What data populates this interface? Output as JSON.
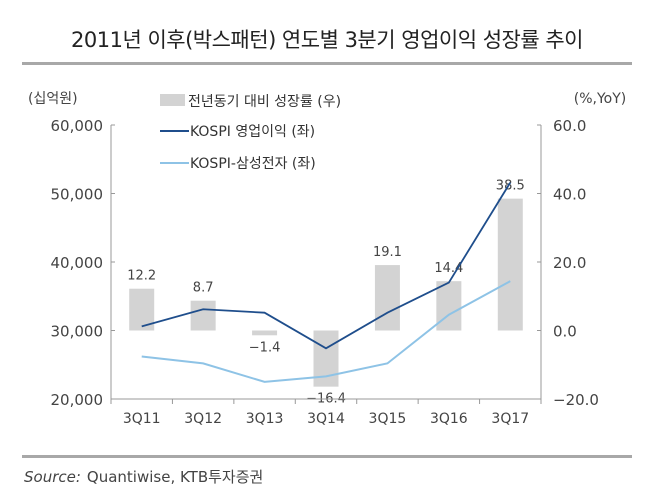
{
  "title": "2011년 이후(박스패턴) 연도별 3분기 영업이익 성장률 추이",
  "source_label": "Source:",
  "source_text": "Quantiwise, KTB투자증권",
  "chart_data": {
    "type": "bar+line",
    "categories": [
      "3Q11",
      "3Q12",
      "3Q13",
      "3Q14",
      "3Q15",
      "3Q16",
      "3Q17"
    ],
    "left_axis": {
      "unit_label": "(십억원)",
      "range": [
        20000,
        60000
      ],
      "ticks": [
        "20,000",
        "30,000",
        "40,000",
        "50,000",
        "60,000"
      ],
      "tick_values": [
        20000,
        30000,
        40000,
        50000,
        60000
      ]
    },
    "right_axis": {
      "unit_label": "(%,YoY)",
      "range": [
        -20,
        60
      ],
      "ticks": [
        "-20.0",
        "0.0",
        "20.0",
        "40.0",
        "60.0"
      ],
      "tick_values": [
        -20,
        0,
        20,
        40,
        60
      ]
    },
    "series": [
      {
        "name": "전년동기 대비 성장률 (우)",
        "type": "bar",
        "axis": "right",
        "color": "#d3d3d3",
        "values": [
          12.2,
          8.7,
          -1.4,
          -16.4,
          19.1,
          14.4,
          38.5
        ],
        "labels": [
          "12.2",
          "8.7",
          "-1.4",
          "-16.4",
          "19.1",
          "14.4",
          "38.5"
        ]
      },
      {
        "name": "KOSPI 영업이익 (좌)",
        "type": "line",
        "axis": "left",
        "color": "#1f4e8c",
        "values": [
          30600,
          33100,
          32600,
          27400,
          32600,
          37000,
          51600
        ]
      },
      {
        "name": "KOSPI-삼성전자 (좌)",
        "type": "line",
        "axis": "left",
        "color": "#8ec3e6",
        "values": [
          26200,
          25200,
          22500,
          23300,
          25200,
          32300,
          37200
        ]
      }
    ],
    "legend": "top-center",
    "grid": false
  }
}
